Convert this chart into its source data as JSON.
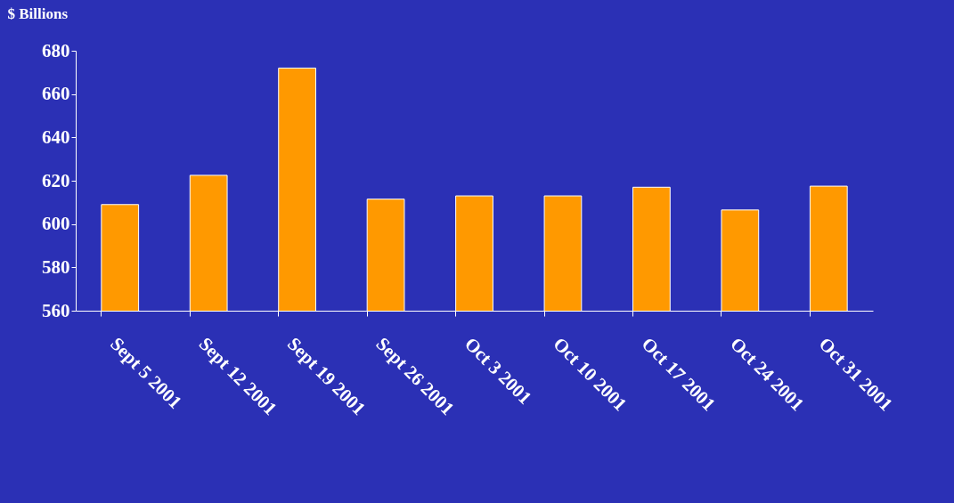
{
  "chart_data": {
    "type": "bar",
    "ylabel": "$ Billions",
    "categories": [
      "Sept 5 2001",
      "Sept 12 2001",
      "Sept 19 2001",
      "Sept 26 2001",
      "Oct 3 2001",
      "Oct 10 2001",
      "Oct 17 2001",
      "Oct 24 2001",
      "Oct 31 2001"
    ],
    "values": [
      609,
      622.5,
      672,
      611.5,
      613,
      613,
      617,
      606.5,
      617.5
    ],
    "color": "#ff9900",
    "ylim": [
      560,
      680
    ],
    "yticks": [
      560,
      580,
      600,
      620,
      640,
      660,
      680
    ],
    "grid": false
  }
}
